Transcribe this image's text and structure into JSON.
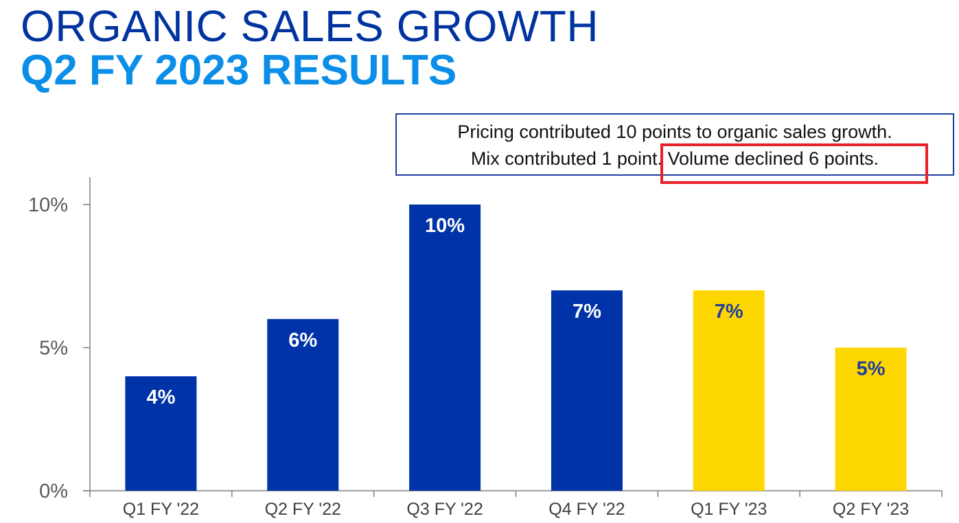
{
  "header": {
    "title_line1": "ORGANIC SALES GROWTH",
    "title_line2": "Q2 FY 2023 RESULTS"
  },
  "callout": {
    "line1": "Pricing contributed 10 points to organic sales growth.",
    "line2_start": "Mix contributed 1 point. ",
    "line2_highlight": "Volume declined 6 points.",
    "highlight_color": "#E8202A"
  },
  "chart_data": {
    "type": "bar",
    "categories": [
      "Q1 FY '22",
      "Q2 FY '22",
      "Q3 FY '22",
      "Q4 FY '22",
      "Q1 FY '23",
      "Q2 FY '23"
    ],
    "values": [
      4,
      6,
      10,
      7,
      7,
      5
    ],
    "data_labels": [
      "4%",
      "6%",
      "10%",
      "7%",
      "7%",
      "5%"
    ],
    "bar_colors": [
      "#0033A8",
      "#0033A8",
      "#0033A8",
      "#0033A8",
      "#FFD700",
      "#FFD700"
    ],
    "label_colors": [
      "#FFFFFF",
      "#FFFFFF",
      "#FFFFFF",
      "#FFFFFF",
      "#1F3F9E",
      "#1F3F9E"
    ],
    "ylim": [
      0,
      10
    ],
    "yticks": [
      0,
      5,
      10
    ],
    "ytick_labels": [
      "0%",
      "5%",
      "10%"
    ],
    "title": "",
    "xlabel": "",
    "ylabel": "",
    "grid": false,
    "legend": "none"
  }
}
